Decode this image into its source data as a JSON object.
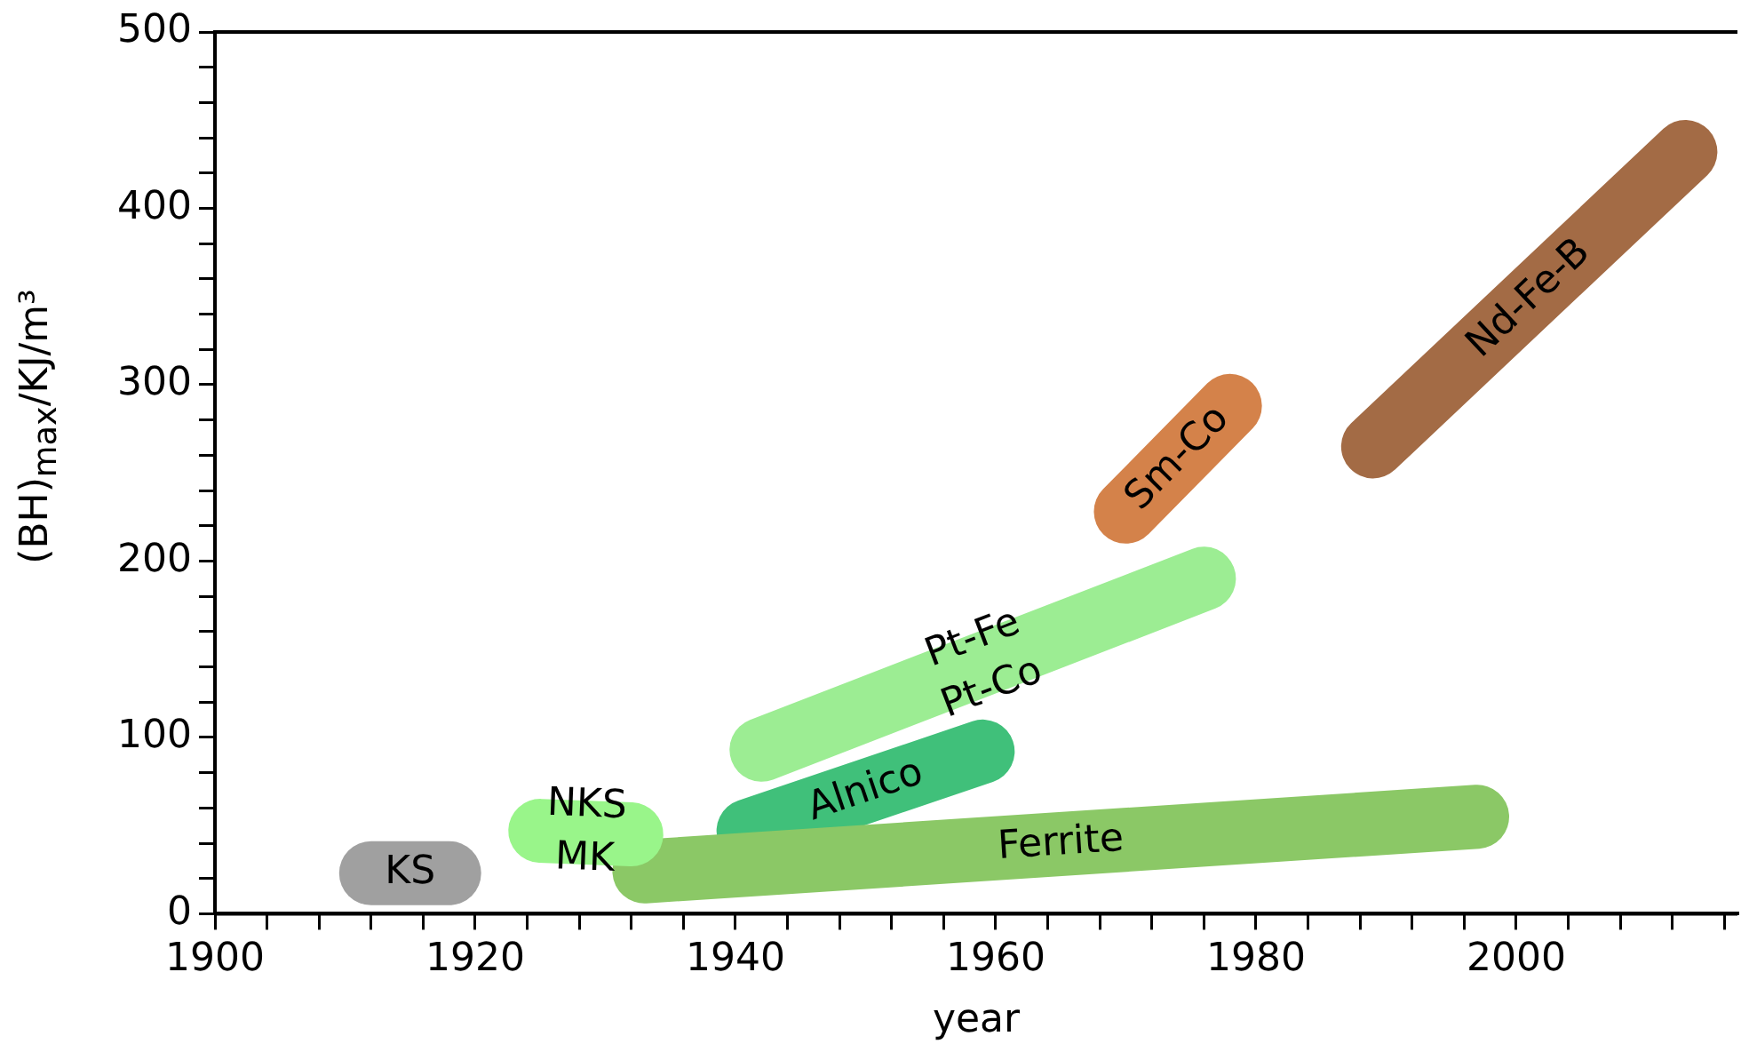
{
  "chart_data": {
    "type": "line",
    "xlabel": "year",
    "ylabel": "(BH)$_{max}$/KJ/m³",
    "xlim": [
      1900,
      2017
    ],
    "ylim": [
      0,
      500
    ],
    "xticks": [
      1900,
      {
        "value": 1904,
        "label": null
      },
      {
        "value": 1908,
        "label": null
      },
      {
        "value": 1912,
        "label": null
      },
      {
        "value": 1916,
        "label": null
      },
      1920,
      {
        "value": 1924,
        "label": null
      },
      {
        "value": 1928,
        "label": null
      },
      {
        "value": 1932,
        "label": null
      },
      {
        "value": 1936,
        "label": null
      },
      1940,
      {
        "value": 1944,
        "label": null
      },
      {
        "value": 1948,
        "label": null
      },
      {
        "value": 1952,
        "label": null
      },
      {
        "value": 1956,
        "label": null
      },
      1960,
      {
        "value": 1964,
        "label": null
      },
      {
        "value": 1968,
        "label": null
      },
      {
        "value": 1972,
        "label": null
      },
      {
        "value": 1976,
        "label": null
      },
      1980,
      {
        "value": 1984,
        "label": null
      },
      {
        "value": 1988,
        "label": null
      },
      {
        "value": 1992,
        "label": null
      },
      {
        "value": 1996,
        "label": null
      },
      2000,
      {
        "value": 2004,
        "label": null
      },
      {
        "value": 2008,
        "label": null
      },
      {
        "value": 2012,
        "label": null
      },
      {
        "value": 2016,
        "label": null
      }
    ],
    "yticks": [
      0,
      {
        "value": 20,
        "label": null
      },
      {
        "value": 40,
        "label": null
      },
      {
        "value": 60,
        "label": null
      },
      {
        "value": 80,
        "label": null
      },
      100,
      {
        "value": 120,
        "label": null
      },
      {
        "value": 140,
        "label": null
      },
      {
        "value": 160,
        "label": null
      },
      {
        "value": 180,
        "label": null
      },
      200,
      {
        "value": 220,
        "label": null
      },
      {
        "value": 240,
        "label": null
      },
      {
        "value": 260,
        "label": null
      },
      {
        "value": 280,
        "label": null
      },
      300,
      {
        "value": 320,
        "label": null
      },
      {
        "value": 340,
        "label": null
      },
      {
        "value": 360,
        "label": null
      },
      {
        "value": 380,
        "label": null
      },
      400,
      {
        "value": 420,
        "label": null
      },
      {
        "value": 440,
        "label": null
      },
      {
        "value": 460,
        "label": null
      },
      {
        "value": 480,
        "label": null
      },
      500
    ],
    "grid": false,
    "legend": false,
    "marker": "none",
    "series": [
      {
        "name": "KS",
        "color": "#a0a0a0",
        "x": [
          1912,
          1918
        ],
        "values": [
          23,
          23
        ]
      },
      {
        "name": "NKS\nMK",
        "color": "#99f58a",
        "x": [
          1925,
          1932
        ],
        "values": [
          47,
          45
        ]
      },
      {
        "name": "Ferrite",
        "color": "#8bc866",
        "x": [
          1933,
          1997
        ],
        "values": [
          24,
          55
        ]
      },
      {
        "name": "Alnico",
        "color": "#40c07a",
        "x": [
          1941,
          1959
        ],
        "values": [
          47,
          92
        ]
      },
      {
        "name": "Pt-Fe\nPt-Co",
        "color": "#9ced93",
        "x": [
          1942,
          1976
        ],
        "values": [
          93,
          190
        ]
      },
      {
        "name": "Sm-Co",
        "color": "#d4824a",
        "x": [
          1970,
          1978
        ],
        "values": [
          228,
          288
        ]
      },
      {
        "name": "Nd-Fe-B",
        "color": "#a36b45",
        "x": [
          1989,
          2013
        ],
        "values": [
          265,
          432
        ]
      }
    ]
  }
}
